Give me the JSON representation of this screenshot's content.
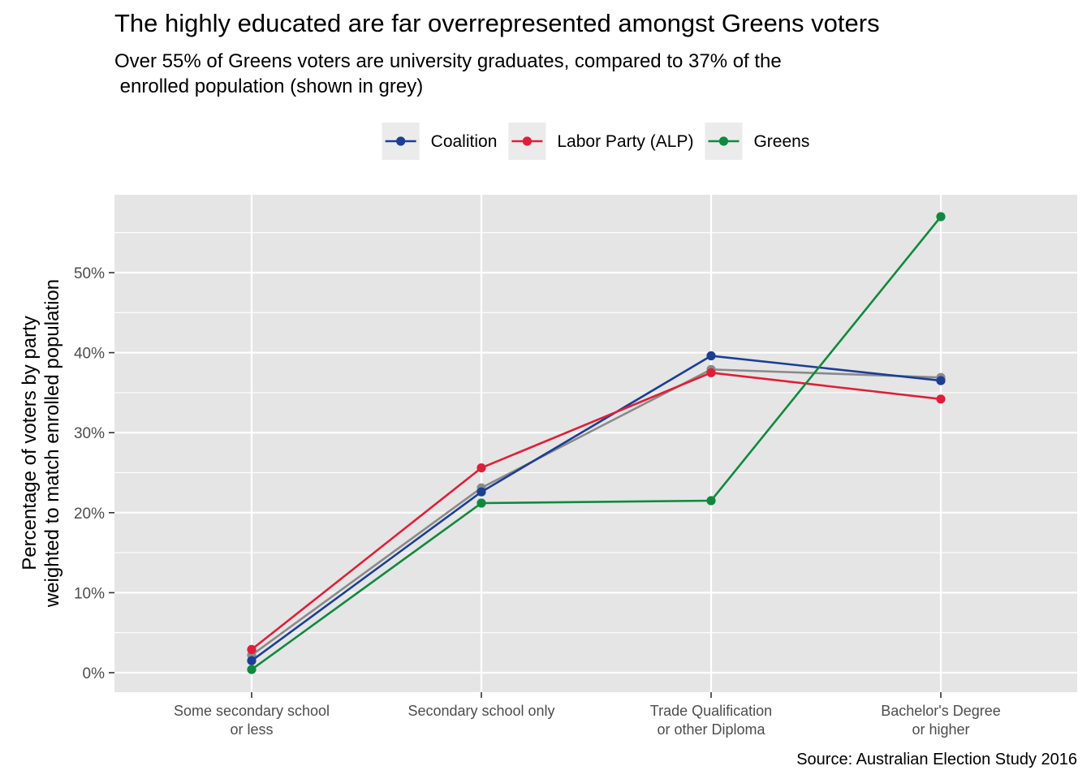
{
  "title": "The highly educated are far overrepresented amongst Greens voters",
  "subtitle_lines": [
    "Over 55% of Greens voters are university graduates, compared to 37% of the",
    " enrolled population (shown in grey)"
  ],
  "caption": "Source: Australian Election Study 2016",
  "chart_data": {
    "type": "line",
    "ylabel_lines": [
      "Percentage of voters by party",
      "weighted to match enrolled population"
    ],
    "xlabel": "",
    "categories": [
      [
        "Some secondary school",
        "or less"
      ],
      [
        "Secondary school only"
      ],
      [
        "Trade Qualification",
        "or other Diploma"
      ],
      [
        "Bachelor's Degree",
        "or higher"
      ]
    ],
    "yticks": [
      0,
      10,
      20,
      30,
      40,
      50
    ],
    "ytick_labels": [
      "0%",
      "10%",
      "20%",
      "30%",
      "40%",
      "50%"
    ],
    "ylim": [
      -2.5,
      60
    ],
    "grid": true,
    "legend_position": "top",
    "series": [
      {
        "key": "enrolled",
        "color": "#8a8a8a",
        "values": [
          2.2,
          23.1,
          37.9,
          36.9
        ],
        "in_legend": false
      },
      {
        "key": "coalition",
        "name": "Coalition",
        "color": "#1c3f94",
        "values": [
          1.5,
          22.6,
          39.6,
          36.5
        ],
        "in_legend": true
      },
      {
        "key": "labor",
        "name": "Labor Party (ALP)",
        "color": "#de1f3a",
        "values": [
          2.9,
          25.6,
          37.5,
          34.2
        ],
        "in_legend": true
      },
      {
        "key": "greens",
        "name": "Greens",
        "color": "#10893e",
        "values": [
          0.4,
          21.2,
          21.5,
          57.0
        ],
        "in_legend": true
      }
    ]
  },
  "colors": {
    "panel_background": "#e5e5e5",
    "grid": "#ffffff",
    "legend_key_background": "#ebebeb"
  }
}
